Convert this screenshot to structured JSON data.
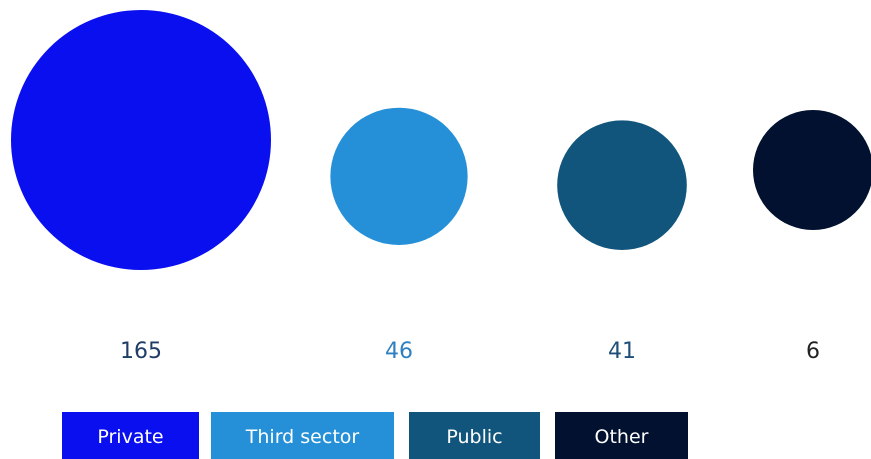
{
  "chart_data": {
    "type": "bubble",
    "title": "",
    "categories": [
      "Private",
      "Third sector",
      "Public",
      "Other"
    ],
    "values": [
      165,
      46,
      41,
      6
    ],
    "colors": [
      "#0a0ff0",
      "#2590d8",
      "#11557c",
      "#01112f"
    ],
    "label_colors": [
      "#1f3d66",
      "#2f80c0",
      "#1f4f78",
      "#222222"
    ],
    "legend": {
      "placement": "bottom",
      "entries": [
        "Private",
        "Third sector",
        "Public",
        "Other"
      ]
    }
  }
}
